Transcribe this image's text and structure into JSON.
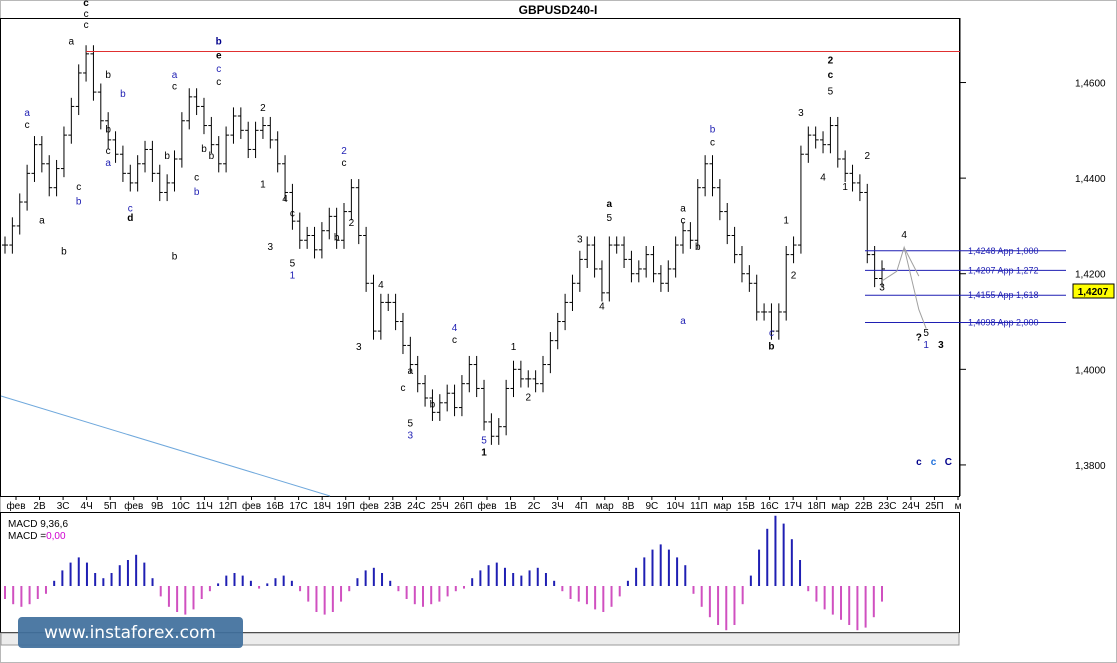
{
  "chart_data": {
    "type": "line",
    "title": "GBPUSD240-I",
    "y_ticks": [
      "1,4600",
      "1,4400",
      "1,4200",
      "1,4000",
      "1,3800"
    ],
    "y_range": [
      1.3735,
      1.4735
    ],
    "current_price": "1,4207",
    "x_ticks": [
      "фев",
      "2В",
      "3С",
      "4Ч",
      "5П",
      "фев",
      "9В",
      "10С",
      "11Ч",
      "12П",
      "фев",
      "16В",
      "17С",
      "18Ч",
      "19П",
      "фев",
      "23В",
      "24С",
      "25Ч",
      "26П",
      "фев",
      "1В",
      "2С",
      "3Ч",
      "4П",
      "мар",
      "8В",
      "9С",
      "10Ч",
      "11П",
      "мар",
      "15В",
      "16С",
      "17Ч",
      "18П",
      "мар",
      "22В",
      "23С",
      "24Ч",
      "25П",
      "м"
    ],
    "price": [
      1.426,
      1.43,
      1.435,
      1.441,
      1.447,
      1.443,
      1.438,
      1.442,
      1.449,
      1.455,
      1.462,
      1.466,
      1.458,
      1.452,
      1.448,
      1.445,
      1.441,
      1.439,
      1.443,
      1.446,
      1.441,
      1.437,
      1.439,
      1.444,
      1.452,
      1.457,
      1.455,
      1.451,
      1.447,
      1.443,
      1.449,
      1.453,
      1.45,
      1.446,
      1.45,
      1.451,
      1.448,
      1.443,
      1.437,
      1.431,
      1.427,
      1.428,
      1.425,
      1.429,
      1.432,
      1.427,
      1.433,
      1.438,
      1.428,
      1.418,
      1.408,
      1.414,
      1.414,
      1.41,
      1.405,
      1.401,
      1.397,
      1.394,
      1.391,
      1.393,
      1.395,
      1.392,
      1.397,
      1.401,
      1.396,
      1.389,
      1.386,
      1.388,
      1.396,
      1.4,
      1.398,
      1.398,
      1.397,
      1.401,
      1.406,
      1.41,
      1.414,
      1.418,
      1.423,
      1.426,
      1.421,
      1.416,
      1.426,
      1.426,
      1.423,
      1.42,
      1.421,
      1.424,
      1.42,
      1.418,
      1.421,
      1.426,
      1.429,
      1.427,
      1.438,
      1.443,
      1.438,
      1.433,
      1.428,
      1.424,
      1.42,
      1.418,
      1.412,
      1.412,
      1.408,
      1.412,
      1.424,
      1.426,
      1.445,
      1.449,
      1.448,
      1.447,
      1.451,
      1.444,
      1.441,
      1.439,
      1.437,
      1.424,
      1.419,
      1.421
    ],
    "macd_label": "MACD 9,36,6",
    "macd_value_label": "MACD =",
    "macd_value": "0,00",
    "macd": [
      -0.5,
      -0.7,
      -0.8,
      -0.7,
      -0.5,
      -0.3,
      0.2,
      0.6,
      0.9,
      1.1,
      0.9,
      0.5,
      0.3,
      0.5,
      0.8,
      1.0,
      1.2,
      0.9,
      0.3,
      -0.4,
      -0.8,
      -1.0,
      -1.1,
      -0.9,
      -0.5,
      -0.2,
      0.1,
      0.4,
      0.5,
      0.4,
      0.2,
      -0.1,
      0.1,
      0.3,
      0.4,
      0.2,
      -0.2,
      -0.6,
      -1.0,
      -1.1,
      -1.0,
      -0.6,
      -0.2,
      0.3,
      0.6,
      0.7,
      0.5,
      0.2,
      -0.2,
      -0.5,
      -0.7,
      -0.8,
      -0.7,
      -0.6,
      -0.4,
      -0.2,
      -0.1,
      0.3,
      0.6,
      0.8,
      0.9,
      0.7,
      0.5,
      0.4,
      0.6,
      0.7,
      0.5,
      0.2,
      -0.2,
      -0.5,
      -0.6,
      -0.7,
      -0.9,
      -1.0,
      -0.8,
      -0.4,
      0.2,
      0.7,
      1.1,
      1.4,
      1.6,
      1.4,
      1.1,
      0.8,
      -0.3,
      -0.8,
      -1.2,
      -1.5,
      -1.7,
      -1.5,
      -0.7,
      0.4,
      1.4,
      2.2,
      2.7,
      2.4,
      1.8,
      1.0,
      -0.2,
      -0.6,
      -0.9,
      -1.1,
      -1.3,
      -1.5,
      -1.7,
      -1.6,
      -1.2,
      -0.6
    ],
    "resistance_line": {
      "price": 1.4665
    },
    "targets": [
      {
        "price": 1.4248,
        "label": "1,4248 App 1,000"
      },
      {
        "price": 1.4207,
        "label": "1,4207 App 1,272"
      },
      {
        "price": 1.4155,
        "label": "1,4155 App 1,618"
      },
      {
        "price": 1.4098,
        "label": "1,4098 App 2,000"
      }
    ],
    "wave_labels": [
      {
        "t": "c",
        "i": 11,
        "p": 1.476,
        "c": "#000000",
        "b": true
      },
      {
        "t": "c",
        "i": 11,
        "p": 1.4737,
        "c": "#000000"
      },
      {
        "t": "c",
        "i": 11,
        "p": 1.4714,
        "c": "#000000"
      },
      {
        "t": "a",
        "i": 9,
        "p": 1.468,
        "c": "#000000"
      },
      {
        "t": "b",
        "i": 14,
        "p": 1.461,
        "c": "#000000"
      },
      {
        "t": "a",
        "i": 3,
        "p": 1.453,
        "c": "#1f1fb3"
      },
      {
        "t": "c",
        "i": 3,
        "p": 1.4505,
        "c": "#000000"
      },
      {
        "t": "a",
        "i": 5,
        "p": 1.4305,
        "c": "#000000"
      },
      {
        "t": "b",
        "i": 8,
        "p": 1.424,
        "c": "#000000"
      },
      {
        "t": "c",
        "i": 10,
        "p": 1.4375,
        "c": "#000000"
      },
      {
        "t": "b",
        "i": 10,
        "p": 1.4345,
        "c": "#1f1fb3"
      },
      {
        "t": "b",
        "i": 14,
        "p": 1.4495,
        "c": "#000000"
      },
      {
        "t": "b",
        "i": 16,
        "p": 1.457,
        "c": "#1f1fb3"
      },
      {
        "t": "c",
        "i": 14,
        "p": 1.445,
        "c": "#000000"
      },
      {
        "t": "a",
        "i": 14,
        "p": 1.4425,
        "c": "#1f1fb3"
      },
      {
        "t": "c",
        "i": 17,
        "p": 1.433,
        "c": "#1f1fb3"
      },
      {
        "t": "d",
        "i": 17,
        "p": 1.431,
        "c": "#000000",
        "b": true
      },
      {
        "t": "a",
        "i": 23,
        "p": 1.461,
        "c": "#1f1fb3"
      },
      {
        "t": "c",
        "i": 23,
        "p": 1.4585,
        "c": "#000000"
      },
      {
        "t": "b",
        "i": 22,
        "p": 1.444,
        "c": "#000000"
      },
      {
        "t": "b",
        "i": 29,
        "p": 1.468,
        "c": "#00008b",
        "b": true
      },
      {
        "t": "e",
        "i": 29,
        "p": 1.465,
        "c": "#000000",
        "b": true
      },
      {
        "t": "c",
        "i": 29,
        "p": 1.4622,
        "c": "#1f1fb3"
      },
      {
        "t": "c",
        "i": 29,
        "p": 1.4595,
        "c": "#000000"
      },
      {
        "t": "c",
        "i": 26,
        "p": 1.4395,
        "c": "#000000"
      },
      {
        "t": "b",
        "i": 26,
        "p": 1.4365,
        "c": "#1f1fb3"
      },
      {
        "t": "b",
        "i": 28,
        "p": 1.444,
        "c": "#000000"
      },
      {
        "t": "b",
        "i": 23,
        "p": 1.423,
        "c": "#000000"
      },
      {
        "t": "b",
        "i": 27,
        "p": 1.4455,
        "c": "#000000"
      },
      {
        "t": "2",
        "i": 35,
        "p": 1.454,
        "c": "#000000"
      },
      {
        "t": "1",
        "i": 35,
        "p": 1.438,
        "c": "#000000"
      },
      {
        "t": "3",
        "i": 36,
        "p": 1.425,
        "c": "#000000"
      },
      {
        "t": "4",
        "i": 38,
        "p": 1.435,
        "c": "#000000"
      },
      {
        "t": "c",
        "i": 39,
        "p": 1.432,
        "c": "#000000"
      },
      {
        "t": "5",
        "i": 39,
        "p": 1.4215,
        "c": "#000000"
      },
      {
        "t": "1",
        "i": 39,
        "p": 1.419,
        "c": "#1f1fb3"
      },
      {
        "t": "2",
        "i": 46,
        "p": 1.445,
        "c": "#1f1fb3"
      },
      {
        "t": "c",
        "i": 46,
        "p": 1.4425,
        "c": "#000000"
      },
      {
        "t": "2",
        "i": 47,
        "p": 1.43,
        "c": "#000000"
      },
      {
        "t": "b",
        "i": 45,
        "p": 1.427,
        "c": "#000000"
      },
      {
        "t": "4",
        "i": 51,
        "p": 1.417,
        "c": "#000000"
      },
      {
        "t": "3",
        "i": 48,
        "p": 1.404,
        "c": "#000000"
      },
      {
        "t": "a",
        "i": 55,
        "p": 1.399,
        "c": "#000000"
      },
      {
        "t": "c",
        "i": 54,
        "p": 1.3955,
        "c": "#000000"
      },
      {
        "t": "5",
        "i": 55,
        "p": 1.388,
        "c": "#000000"
      },
      {
        "t": "3",
        "i": 55,
        "p": 1.3855,
        "c": "#1f1fb3"
      },
      {
        "t": "b",
        "i": 58,
        "p": 1.392,
        "c": "#000000"
      },
      {
        "t": "4",
        "i": 61,
        "p": 1.408,
        "c": "#1f1fb3"
      },
      {
        "t": "c",
        "i": 61,
        "p": 1.4055,
        "c": "#000000"
      },
      {
        "t": "5",
        "i": 65,
        "p": 1.3845,
        "c": "#1f1fb3"
      },
      {
        "t": "1",
        "i": 65,
        "p": 1.382,
        "c": "#000000",
        "b": true
      },
      {
        "t": "1",
        "i": 69,
        "p": 1.404,
        "c": "#000000"
      },
      {
        "t": "2",
        "i": 71,
        "p": 1.3935,
        "c": "#000000"
      },
      {
        "t": "3",
        "i": 78,
        "p": 1.4265,
        "c": "#000000"
      },
      {
        "t": "a",
        "i": 82,
        "p": 1.434,
        "c": "#000000",
        "b": true
      },
      {
        "t": "5",
        "i": 82,
        "p": 1.431,
        "c": "#000000"
      },
      {
        "t": "4",
        "i": 81,
        "p": 1.4125,
        "c": "#000000"
      },
      {
        "t": "a",
        "i": 92,
        "p": 1.433,
        "c": "#000000"
      },
      {
        "t": "c",
        "i": 92,
        "p": 1.4305,
        "c": "#000000"
      },
      {
        "t": "b",
        "i": 94,
        "p": 1.425,
        "c": "#000000"
      },
      {
        "t": "a",
        "i": 92,
        "p": 1.4095,
        "c": "#1f1fb3"
      },
      {
        "t": "b",
        "i": 96,
        "p": 1.4495,
        "c": "#1f1fb3"
      },
      {
        "t": "c",
        "i": 96,
        "p": 1.4468,
        "c": "#000000"
      },
      {
        "t": "c",
        "i": 104,
        "p": 1.407,
        "c": "#1f1fb3"
      },
      {
        "t": "b",
        "i": 104,
        "p": 1.4042,
        "c": "#000000",
        "b": true
      },
      {
        "t": "1",
        "i": 106,
        "p": 1.4305,
        "c": "#000000"
      },
      {
        "t": "2",
        "i": 107,
        "p": 1.419,
        "c": "#000000"
      },
      {
        "t": "3",
        "i": 108,
        "p": 1.453,
        "c": "#000000"
      },
      {
        "t": "4",
        "i": 111,
        "p": 1.4395,
        "c": "#000000"
      },
      {
        "t": "2",
        "i": 112,
        "p": 1.464,
        "c": "#000000",
        "b": true
      },
      {
        "t": "c",
        "i": 112,
        "p": 1.461,
        "c": "#000000",
        "b": true
      },
      {
        "t": "5",
        "i": 112,
        "p": 1.4575,
        "c": "#000000"
      },
      {
        "t": "1",
        "i": 114,
        "p": 1.4375,
        "c": "#000000"
      },
      {
        "t": "2",
        "i": 117,
        "p": 1.444,
        "c": "#000000"
      },
      {
        "t": "3",
        "i": 119,
        "p": 1.4165,
        "c": "#000000"
      },
      {
        "t": "4",
        "i": 122,
        "p": 1.4275,
        "c": "#000000"
      },
      {
        "t": "?",
        "i": 124,
        "p": 1.406,
        "c": "#000000",
        "b": true
      },
      {
        "t": "5",
        "i": 125,
        "p": 1.407,
        "c": "#000000"
      },
      {
        "t": "1",
        "i": 125,
        "p": 1.4045,
        "c": "#1f1fb3"
      },
      {
        "t": "3",
        "i": 127,
        "p": 1.4045,
        "c": "#000000",
        "b": true
      },
      {
        "t": "c",
        "i": 124,
        "p": 1.38,
        "c": "#00008b",
        "b": true
      },
      {
        "t": "c",
        "i": 126,
        "p": 1.38,
        "c": "#1f6fdb",
        "b": true
      },
      {
        "t": "C",
        "i": 128,
        "p": 1.38,
        "c": "#00008b",
        "b": true
      }
    ]
  },
  "watermark": "www.instaforex.com",
  "colors": {
    "price": "#000000",
    "resistance": "#e03030",
    "target": "#1f1fb3",
    "macd_pos": "#1f1fb3",
    "macd_neg": "#d050c0",
    "trend": "#6fa8dc",
    "forecast": "#a0a0a0"
  }
}
